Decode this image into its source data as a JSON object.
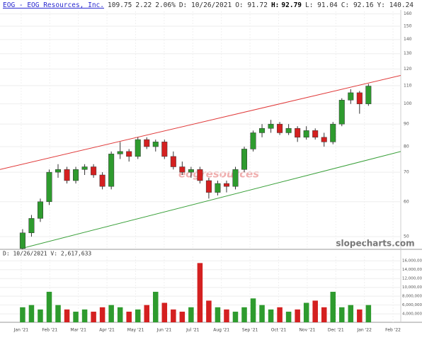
{
  "header": {
    "title": "EOG - EOG Resources, Inc.",
    "quote": [
      "109.75",
      "2.22",
      "2.06%",
      "D: 10/26/2021",
      "O: 91.72",
      "H:",
      "92.79",
      "L: 91.04",
      "C: 92.16",
      "Y: 140.24"
    ]
  },
  "volume_header": "D: 10/26/2021  V:  2,617,633",
  "watermark": "slopecharts.com",
  "logo_text": "eogresources",
  "chart_data": {
    "type": "candlestick",
    "x": [
      0.05,
      0.36,
      0.67,
      0.98,
      1.29,
      1.6,
      1.91,
      2.22,
      2.53,
      2.84,
      3.15,
      3.46,
      3.77,
      4.08,
      4.39,
      4.7,
      5.01,
      5.32,
      5.63,
      5.94,
      6.25,
      6.56,
      6.87,
      7.18,
      7.49,
      7.8,
      8.11,
      8.42,
      8.73,
      9.04,
      9.35,
      9.66,
      9.97,
      10.28,
      10.59,
      10.9,
      11.21,
      11.52,
      11.83,
      12.14
    ],
    "open": [
      47,
      51,
      55,
      60,
      70,
      71,
      67,
      71,
      72,
      69,
      65,
      77,
      78,
      76,
      83,
      80,
      82,
      76,
      72,
      70,
      71,
      67,
      63,
      66,
      65,
      71,
      79,
      86,
      88,
      90,
      86,
      88,
      84,
      87,
      84,
      82,
      90,
      102,
      106,
      100
    ],
    "high": [
      52,
      56,
      61,
      71,
      73,
      72,
      72,
      73,
      73,
      70,
      78,
      82,
      79,
      84,
      84,
      83,
      83,
      78,
      74,
      72,
      72,
      68,
      67,
      67,
      72,
      80,
      87,
      90,
      92,
      91,
      90,
      89,
      89,
      88,
      86,
      91,
      103,
      108,
      107,
      111
    ],
    "low": [
      46.5,
      50,
      54,
      59,
      68,
      66,
      66,
      69,
      68,
      64,
      64,
      75,
      74,
      75,
      79,
      78,
      75,
      71,
      69,
      68,
      66,
      61,
      62,
      63,
      64,
      70,
      78,
      84,
      86,
      85,
      85,
      82,
      83,
      83,
      80,
      81,
      89,
      100,
      95,
      99
    ],
    "close": [
      51,
      55,
      60,
      70,
      71,
      67,
      71,
      72,
      69,
      65,
      77,
      78,
      76,
      83,
      80,
      82,
      76,
      72,
      70,
      71,
      67,
      63,
      66,
      65,
      71,
      79,
      86,
      88,
      90,
      86,
      88,
      84,
      87,
      84,
      82,
      90,
      102,
      106,
      100,
      109.75
    ],
    "volume": [
      5500000,
      6000000,
      5000000,
      9000000,
      6000000,
      5000000,
      4500000,
      5000000,
      4500000,
      5500000,
      6000000,
      5500000,
      4500000,
      5000000,
      6000000,
      9000000,
      6500000,
      5000000,
      4500000,
      5500000,
      15500000,
      7000000,
      5500000,
      5000000,
      4500000,
      5500000,
      7500000,
      6000000,
      5000000,
      5500000,
      4500000,
      5000000,
      6500000,
      7000000,
      5500000,
      9000000,
      5500000,
      6000000,
      5000000,
      6000000
    ],
    "up_color": "#2e9b2e",
    "down_color": "#d42020",
    "log_scale": true,
    "grid": true,
    "ylim": [
      46.8,
      167
    ],
    "yticks": [
      50,
      60,
      70,
      80,
      90,
      100,
      110,
      120,
      130,
      140,
      150,
      160
    ],
    "xlim": [
      -0.74,
      13.27
    ],
    "xticks": [
      {
        "value": 0,
        "label": "Jan '21"
      },
      {
        "value": 1,
        "label": "Feb '21"
      },
      {
        "value": 2,
        "label": "Mar '21"
      },
      {
        "value": 3,
        "label": "Apr '21"
      },
      {
        "value": 4,
        "label": "May '21"
      },
      {
        "value": 5,
        "label": "Jun '21"
      },
      {
        "value": 6,
        "label": "Jul '21"
      },
      {
        "value": 7,
        "label": "Aug '21"
      },
      {
        "value": 8,
        "label": "Sep '21"
      },
      {
        "value": 9,
        "label": "Oct '21"
      },
      {
        "value": 10,
        "label": "Nov '21"
      },
      {
        "value": 11,
        "label": "Dec '21"
      },
      {
        "value": 12,
        "label": "Jan '22"
      },
      {
        "value": 13,
        "label": "Feb '22"
      }
    ],
    "volume_ylim": [
      2100000,
      17000000
    ],
    "volume_yticks": [
      {
        "value": 4000000,
        "label": "4,000,000"
      },
      {
        "value": 6000000,
        "label": "6,000,000"
      },
      {
        "value": 8000000,
        "label": "8,000,000"
      },
      {
        "value": 10000000,
        "label": "10,000,000"
      },
      {
        "value": 12000000,
        "label": "12,000,000"
      },
      {
        "value": 14000000,
        "label": "14,000,000"
      },
      {
        "value": 16000000,
        "label": "16,000,000"
      }
    ],
    "trendlines": [
      {
        "color": "#e03a3a",
        "x": [
          -0.74,
          13.27
        ],
        "y": [
          71,
          116
        ]
      },
      {
        "color": "#3aa03a",
        "x": [
          0,
          13.27
        ],
        "y": [
          47,
          78
        ]
      }
    ]
  }
}
